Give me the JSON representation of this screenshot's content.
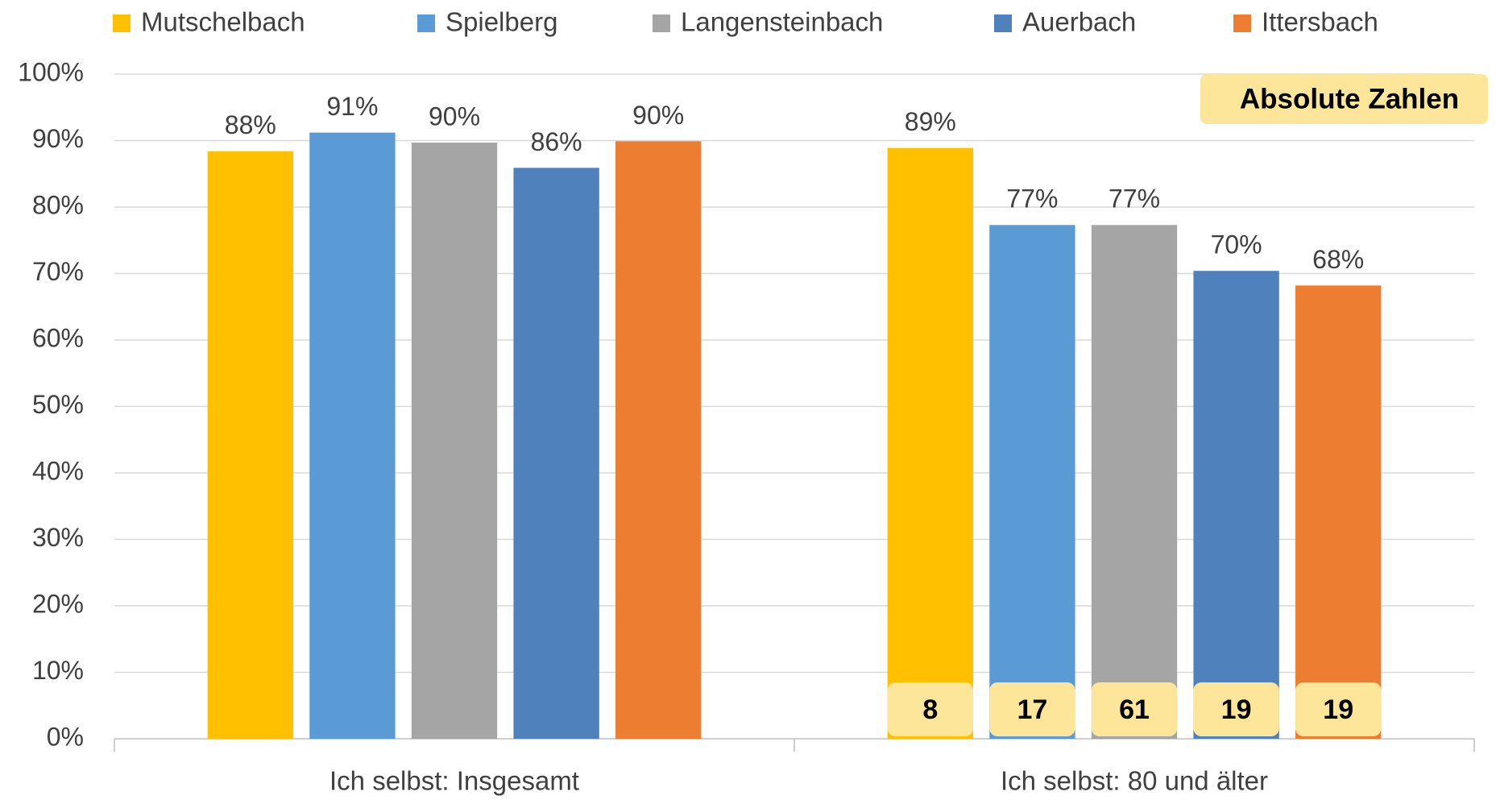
{
  "chart_data": {
    "type": "bar",
    "categories": [
      "Ich selbst: Insgesamt",
      "Ich selbst: 80 und älter"
    ],
    "series": [
      {
        "name": "Mutschelbach",
        "color": "#ffc000",
        "values": [
          88.4,
          88.9
        ],
        "value_labels": [
          "88%",
          "89%"
        ],
        "counts": [
          null,
          8
        ]
      },
      {
        "name": "Spielberg",
        "color": "#5b9bd5",
        "values": [
          91.2,
          77.3
        ],
        "value_labels": [
          "91%",
          "77%"
        ],
        "counts": [
          null,
          17
        ]
      },
      {
        "name": "Langensteinbach",
        "color": "#a5a5a5",
        "values": [
          89.7,
          77.3
        ],
        "value_labels": [
          "90%",
          "77%"
        ],
        "counts": [
          null,
          61
        ]
      },
      {
        "name": "Auerbach",
        "color": "#4f81bd",
        "values": [
          85.9,
          70.4
        ],
        "value_labels": [
          "86%",
          "70%"
        ],
        "counts": [
          null,
          19
        ]
      },
      {
        "name": "Ittersbach",
        "color": "#ed7d31",
        "values": [
          89.9,
          68.2
        ],
        "value_labels": [
          "90%",
          "68%"
        ],
        "counts": [
          null,
          19
        ]
      }
    ],
    "annotation": "Absolute Zahlen",
    "ylim": [
      0,
      100
    ],
    "yticks": [
      {
        "value": 0,
        "label": "0%"
      },
      {
        "value": 10,
        "label": "10%"
      },
      {
        "value": 20,
        "label": "20%"
      },
      {
        "value": 30,
        "label": "30%"
      },
      {
        "value": 40,
        "label": "40%"
      },
      {
        "value": 50,
        "label": "50%"
      },
      {
        "value": 60,
        "label": "60%"
      },
      {
        "value": 70,
        "label": "70%"
      },
      {
        "value": 80,
        "label": "80%"
      },
      {
        "value": 90,
        "label": "90%"
      },
      {
        "value": 100,
        "label": "100%"
      }
    ],
    "grid": true,
    "legend": "top"
  }
}
